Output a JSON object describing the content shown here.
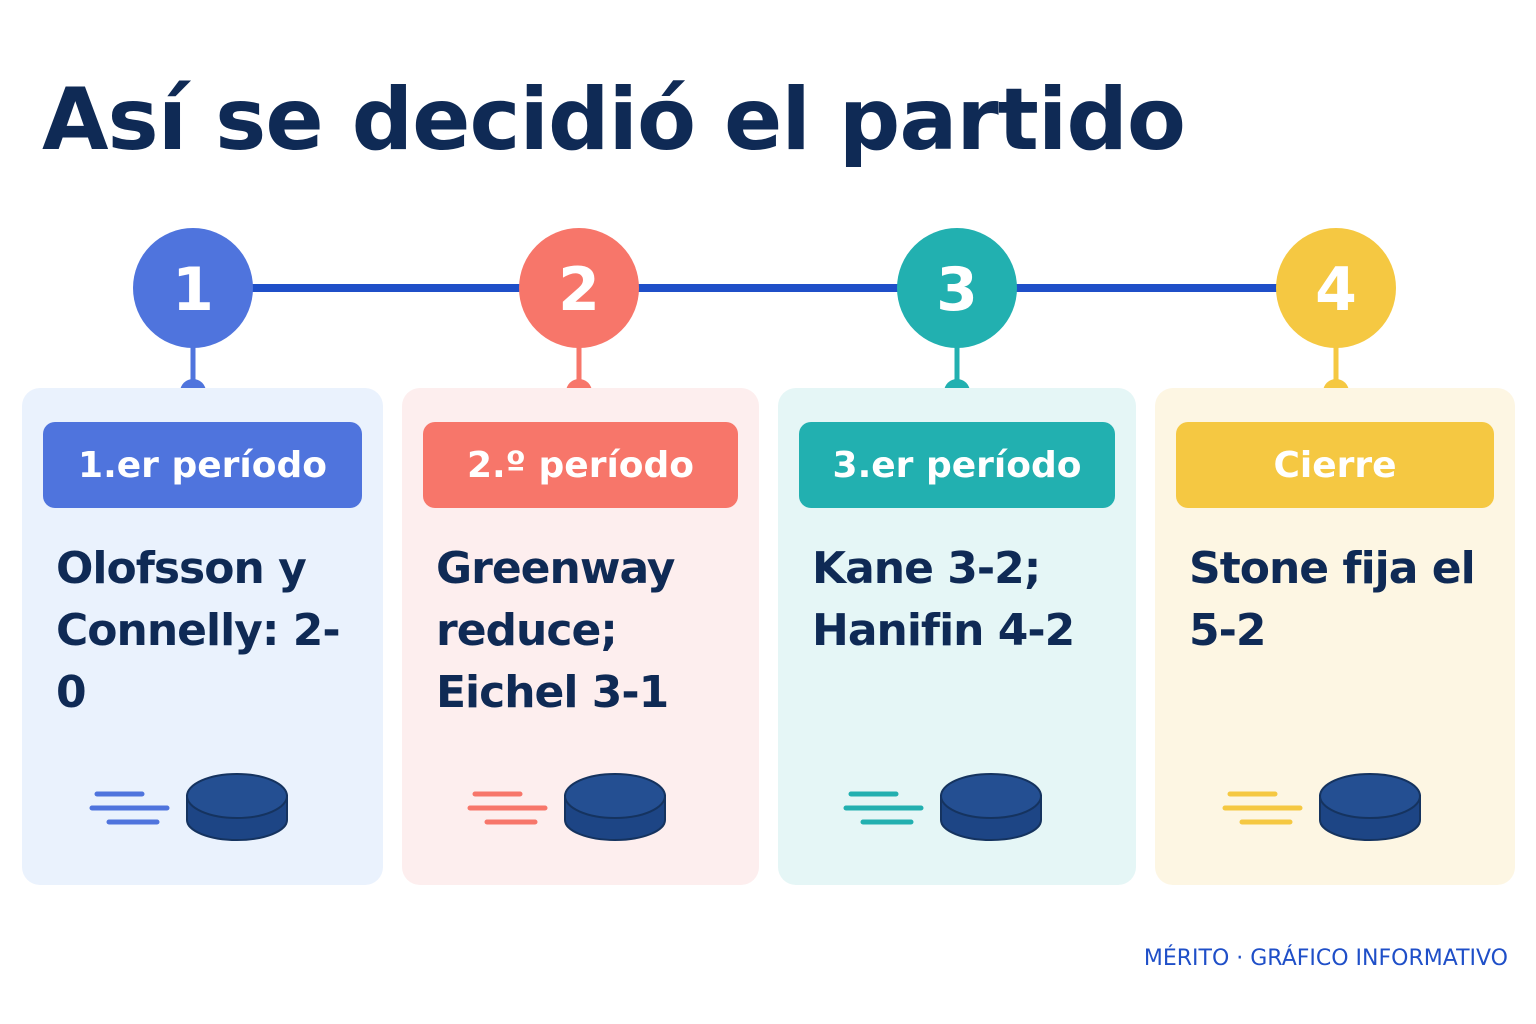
{
  "title": "Así se decidió el partido",
  "steps": [
    {
      "number": "1",
      "label": "1.er período",
      "text": "Olofsson y Connelly: 2-0"
    },
    {
      "number": "2",
      "label": "2.º período",
      "text": "Greenway reduce; Eichel 3-1"
    },
    {
      "number": "3",
      "label": "3.er período",
      "text": "Kane 3-2; Hanifin 4-2"
    },
    {
      "number": "4",
      "label": "Cierre",
      "text": "Stone fija el 5-2"
    }
  ],
  "footer": "MÉRITO · GRÁFICO INFORMATIVO"
}
